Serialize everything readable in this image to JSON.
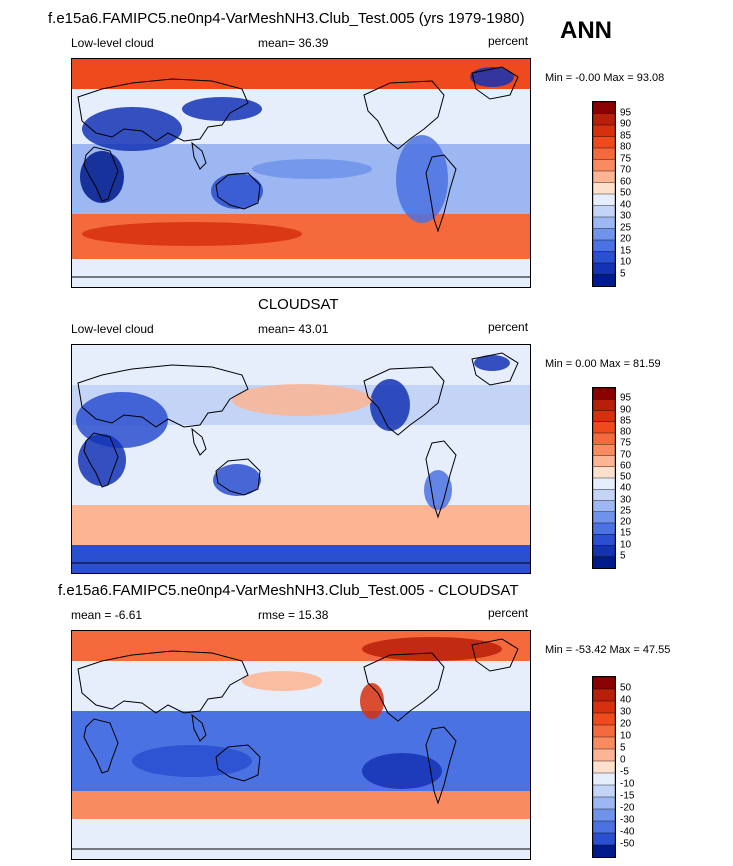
{
  "figure": {
    "season": "ANN",
    "panels": [
      {
        "title": "f.e15a6.FAMIPC5.ne0np4-VarMeshNH3.Club_Test.005 (yrs 1979-1980)",
        "left_label": "Low-level cloud",
        "stat_label": "mean=  36.39",
        "units": "percent",
        "minmax": "Min =  -0.00 Max =  93.08",
        "colorbar_labels": [
          "95",
          "90",
          "85",
          "80",
          "75",
          "70",
          "60",
          "50",
          "40",
          "30",
          "25",
          "20",
          "15",
          "10",
          "5"
        ],
        "colors": [
          "#8b0000",
          "#b81f0a",
          "#d6300f",
          "#ee4a1d",
          "#f46a3c",
          "#f98b60",
          "#fdb492",
          "#fde0cc",
          "#e6eefc",
          "#c3d4f7",
          "#9cb7f2",
          "#6f93ea",
          "#4b72e2",
          "#2a4fd0",
          "#1432b4",
          "#001b8c"
        ]
      },
      {
        "title": "CLOUDSAT",
        "left_label": "Low-level cloud",
        "stat_label": "mean=  43.01",
        "units": "percent",
        "minmax": "Min =   0.00 Max =  81.59",
        "colorbar_labels": [
          "95",
          "90",
          "85",
          "80",
          "75",
          "70",
          "60",
          "50",
          "40",
          "30",
          "25",
          "20",
          "15",
          "10",
          "5"
        ],
        "colors": [
          "#8b0000",
          "#b81f0a",
          "#d6300f",
          "#ee4a1d",
          "#f46a3c",
          "#f98b60",
          "#fdb492",
          "#fde0cc",
          "#e6eefc",
          "#c3d4f7",
          "#9cb7f2",
          "#6f93ea",
          "#4b72e2",
          "#2a4fd0",
          "#1432b4",
          "#001b8c"
        ]
      },
      {
        "title": "f.e15a6.FAMIPC5.ne0np4-VarMeshNH3.Club_Test.005 - CLOUDSAT",
        "left_label": "mean =  -6.61",
        "stat_label": "rmse =  15.38",
        "units": "percent",
        "minmax": "Min = -53.42 Max =  47.55",
        "colorbar_labels": [
          "50",
          "40",
          "30",
          "20",
          "10",
          "5",
          "0",
          "-5",
          "-10",
          "-15",
          "-20",
          "-30",
          "-40",
          "-50"
        ],
        "colors": [
          "#8b0000",
          "#b81f0a",
          "#d6300f",
          "#ee4a1d",
          "#f46a3c",
          "#f98b60",
          "#fdb492",
          "#fde0cc",
          "#e6eefc",
          "#c3d4f7",
          "#9cb7f2",
          "#6f93ea",
          "#4b72e2",
          "#2a4fd0",
          "#001b8c"
        ]
      }
    ]
  }
}
